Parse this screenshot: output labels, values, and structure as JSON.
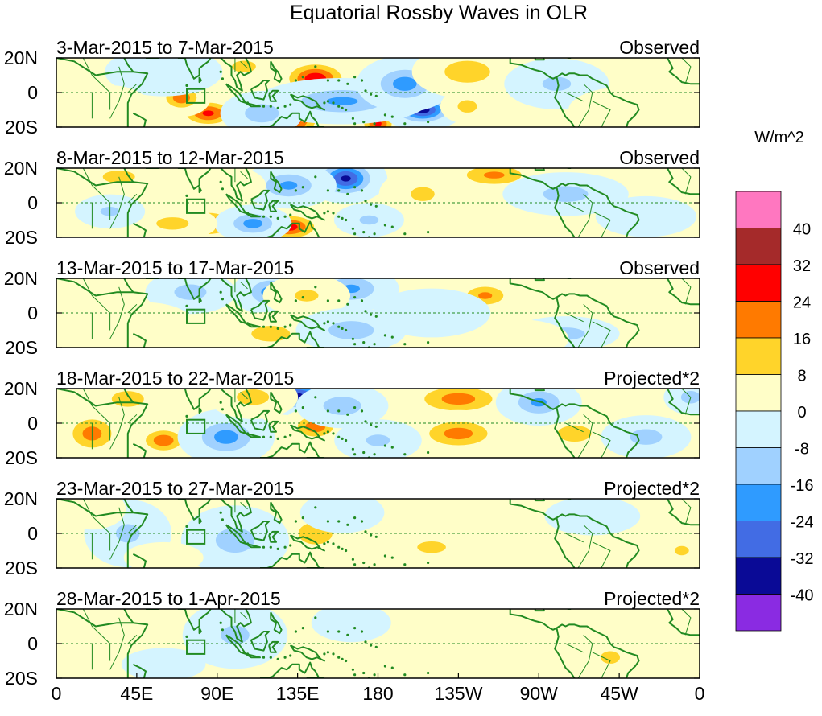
{
  "chart_data": {
    "type": "heatmap",
    "title": "Equatorial Rossby Waves in OLR",
    "units": "W/m^2",
    "x_ticks": [
      "0",
      "45E",
      "90E",
      "135E",
      "180",
      "135W",
      "90W",
      "45W",
      "0"
    ],
    "x_tick_lons": [
      0,
      45,
      90,
      135,
      180,
      225,
      270,
      315,
      360
    ],
    "y_ticks": [
      "20N",
      "0",
      "20S"
    ],
    "y_tick_lats": [
      20,
      0,
      -20
    ],
    "xlim": [
      0,
      360
    ],
    "ylim": [
      -20,
      20
    ],
    "reference_lines": {
      "equator_lat": 0,
      "dateline_lon": 180
    },
    "box_region": {
      "lon": [
        73,
        83
      ],
      "lat": [
        -6,
        2
      ]
    },
    "colorbar": {
      "levels": [
        "40",
        "32",
        "24",
        "16",
        "8",
        "0",
        "-8",
        "-16",
        "-24",
        "-32",
        "-40"
      ],
      "colors": [
        "#ff77c0",
        "#a52a2a",
        "#ff0000",
        "#ff7a00",
        "#ffd42a",
        "#fffec8",
        "#d4f4ff",
        "#a0d1ff",
        "#2f9bff",
        "#426ce4",
        "#0a0a96",
        "#8a2be2"
      ]
    },
    "panels": [
      {
        "period": "3-Mar-2015 to 7-Mar-2015",
        "label": "Observed",
        "blobs": [
          {
            "lon": 145,
            "lat": 8,
            "value": 30,
            "sx": 9,
            "sy": 5
          },
          {
            "lon": 85,
            "lat": -12,
            "value": 26,
            "sx": 8,
            "sy": 4
          },
          {
            "lon": 130,
            "lat": -16,
            "value": 32,
            "sx": 9,
            "sy": 5
          },
          {
            "lon": 70,
            "lat": -3,
            "value": 22,
            "sx": 6,
            "sy": 4
          },
          {
            "lon": 180,
            "lat": -18,
            "value": 26,
            "sx": 5,
            "sy": 4
          },
          {
            "lon": 205,
            "lat": -10,
            "value": -36,
            "sx": 8,
            "sy": 4
          },
          {
            "lon": 160,
            "lat": -5,
            "value": -18,
            "sx": 18,
            "sy": 5
          },
          {
            "lon": 195,
            "lat": 5,
            "value": -20,
            "sx": 10,
            "sy": 6
          },
          {
            "lon": 115,
            "lat": -12,
            "value": -14,
            "sx": 9,
            "sy": 5
          },
          {
            "lon": 230,
            "lat": 12,
            "value": 14,
            "sx": 12,
            "sy": 6
          },
          {
            "lon": 230,
            "lat": -8,
            "value": 12,
            "sx": 6,
            "sy": 4
          },
          {
            "lon": 105,
            "lat": 15,
            "value": 10,
            "sx": 10,
            "sy": 5
          },
          {
            "lon": 60,
            "lat": 12,
            "value": -8,
            "sx": 14,
            "sy": 6
          },
          {
            "lon": 280,
            "lat": 5,
            "value": -10,
            "sx": 12,
            "sy": 6
          },
          {
            "lon": 320,
            "lat": -10,
            "value": 6,
            "sx": 15,
            "sy": 6
          },
          {
            "lon": 30,
            "lat": -10,
            "value": 8,
            "sx": 10,
            "sy": 6
          }
        ]
      },
      {
        "period": "8-Mar-2015 to 12-Mar-2015",
        "label": "Observed",
        "blobs": [
          {
            "lon": 85,
            "lat": -12,
            "value": 26,
            "sx": 8,
            "sy": 4
          },
          {
            "lon": 130,
            "lat": -14,
            "value": 28,
            "sx": 9,
            "sy": 4
          },
          {
            "lon": 145,
            "lat": 10,
            "value": 18,
            "sx": 9,
            "sy": 5
          },
          {
            "lon": 162,
            "lat": 14,
            "value": -34,
            "sx": 8,
            "sy": 5
          },
          {
            "lon": 130,
            "lat": 10,
            "value": -18,
            "sx": 10,
            "sy": 5
          },
          {
            "lon": 110,
            "lat": -12,
            "value": -20,
            "sx": 8,
            "sy": 4
          },
          {
            "lon": 245,
            "lat": 16,
            "value": 18,
            "sx": 12,
            "sy": 4
          },
          {
            "lon": 205,
            "lat": 5,
            "value": 10,
            "sx": 10,
            "sy": 6
          },
          {
            "lon": 65,
            "lat": -12,
            "value": 12,
            "sx": 10,
            "sy": 4
          },
          {
            "lon": 35,
            "lat": 15,
            "value": 12,
            "sx": 10,
            "sy": 4
          },
          {
            "lon": 285,
            "lat": 5,
            "value": -12,
            "sx": 14,
            "sy": 5
          },
          {
            "lon": 30,
            "lat": -5,
            "value": -10,
            "sx": 8,
            "sy": 4
          },
          {
            "lon": 175,
            "lat": -10,
            "value": -10,
            "sx": 8,
            "sy": 4
          },
          {
            "lon": 330,
            "lat": -8,
            "value": -8,
            "sx": 12,
            "sy": 5
          },
          {
            "lon": 95,
            "lat": 10,
            "value": 6,
            "sx": 10,
            "sy": 5
          }
        ]
      },
      {
        "period": "13-Mar-2015 to 17-Mar-2015",
        "label": "Observed",
        "blobs": [
          {
            "lon": 120,
            "lat": 12,
            "value": -20,
            "sx": 8,
            "sy": 5
          },
          {
            "lon": 165,
            "lat": 14,
            "value": -18,
            "sx": 10,
            "sy": 5
          },
          {
            "lon": 140,
            "lat": 10,
            "value": 10,
            "sx": 10,
            "sy": 5
          },
          {
            "lon": 240,
            "lat": 10,
            "value": 18,
            "sx": 8,
            "sy": 4
          },
          {
            "lon": 120,
            "lat": -12,
            "value": 12,
            "sx": 12,
            "sy": 5
          },
          {
            "lon": 75,
            "lat": 12,
            "value": -12,
            "sx": 10,
            "sy": 5
          },
          {
            "lon": 165,
            "lat": -10,
            "value": -14,
            "sx": 12,
            "sy": 5
          },
          {
            "lon": 210,
            "lat": 0,
            "value": -8,
            "sx": 14,
            "sy": 6
          },
          {
            "lon": 285,
            "lat": -12,
            "value": -12,
            "sx": 12,
            "sy": 4
          },
          {
            "lon": 50,
            "lat": -8,
            "value": 8,
            "sx": 12,
            "sy": 6
          },
          {
            "lon": 315,
            "lat": 10,
            "value": 6,
            "sx": 12,
            "sy": 5
          },
          {
            "lon": 260,
            "lat": -15,
            "value": 6,
            "sx": 12,
            "sy": 5
          }
        ]
      },
      {
        "period": "18-Mar-2015 to 22-Mar-2015",
        "label": "Projected*2",
        "blobs": [
          {
            "lon": 135,
            "lat": 16,
            "value": -34,
            "sx": 9,
            "sy": 4
          },
          {
            "lon": 225,
            "lat": 14,
            "value": 20,
            "sx": 14,
            "sy": 5
          },
          {
            "lon": 145,
            "lat": -2,
            "value": 22,
            "sx": 7,
            "sy": 4
          },
          {
            "lon": 60,
            "lat": -10,
            "value": 22,
            "sx": 7,
            "sy": 4
          },
          {
            "lon": 20,
            "lat": -6,
            "value": 20,
            "sx": 8,
            "sy": 6
          },
          {
            "lon": 225,
            "lat": -6,
            "value": 20,
            "sx": 12,
            "sy": 5
          },
          {
            "lon": 290,
            "lat": -6,
            "value": 16,
            "sx": 8,
            "sy": 4
          },
          {
            "lon": 95,
            "lat": -8,
            "value": -20,
            "sx": 10,
            "sy": 6
          },
          {
            "lon": 270,
            "lat": 12,
            "value": -18,
            "sx": 9,
            "sy": 5
          },
          {
            "lon": 160,
            "lat": 10,
            "value": -14,
            "sx": 10,
            "sy": 5
          },
          {
            "lon": 330,
            "lat": -8,
            "value": -12,
            "sx": 10,
            "sy": 5
          },
          {
            "lon": 110,
            "lat": 15,
            "value": 12,
            "sx": 10,
            "sy": 5
          },
          {
            "lon": 180,
            "lat": -10,
            "value": -10,
            "sx": 10,
            "sy": 5
          },
          {
            "lon": 40,
            "lat": 14,
            "value": 12,
            "sx": 10,
            "sy": 5
          },
          {
            "lon": 355,
            "lat": 15,
            "value": -12,
            "sx": 6,
            "sy": 4
          }
        ]
      },
      {
        "period": "23-Mar-2015 to 27-Mar-2015",
        "label": "Projected*2",
        "blobs": [
          {
            "lon": 145,
            "lat": 0,
            "value": 14,
            "sx": 9,
            "sy": 6
          },
          {
            "lon": 100,
            "lat": -4,
            "value": -12,
            "sx": 12,
            "sy": 8
          },
          {
            "lon": 210,
            "lat": -8,
            "value": 10,
            "sx": 12,
            "sy": 5
          },
          {
            "lon": 250,
            "lat": 5,
            "value": 6,
            "sx": 14,
            "sy": 6
          },
          {
            "lon": 40,
            "lat": 0,
            "value": -10,
            "sx": 10,
            "sy": 8
          },
          {
            "lon": 160,
            "lat": 12,
            "value": -8,
            "sx": 10,
            "sy": 5
          },
          {
            "lon": 20,
            "lat": 14,
            "value": 8,
            "sx": 8,
            "sy": 5
          },
          {
            "lon": 350,
            "lat": -10,
            "value": 10,
            "sx": 6,
            "sy": 4
          },
          {
            "lon": 300,
            "lat": 10,
            "value": -6,
            "sx": 12,
            "sy": 5
          },
          {
            "lon": 60,
            "lat": -14,
            "value": 6,
            "sx": 10,
            "sy": 4
          }
        ]
      },
      {
        "period": "28-Mar-2015 to 1-Apr-2015",
        "label": "Projected*2",
        "blobs": [
          {
            "lon": 130,
            "lat": 2,
            "value": 8,
            "sx": 10,
            "sy": 6
          },
          {
            "lon": 100,
            "lat": 5,
            "value": -10,
            "sx": 12,
            "sy": 8
          },
          {
            "lon": 310,
            "lat": -8,
            "value": 12,
            "sx": 6,
            "sy": 4
          },
          {
            "lon": 210,
            "lat": 5,
            "value": 6,
            "sx": 14,
            "sy": 6
          },
          {
            "lon": 250,
            "lat": -10,
            "value": 6,
            "sx": 14,
            "sy": 5
          },
          {
            "lon": 60,
            "lat": -12,
            "value": -8,
            "sx": 10,
            "sy": 4
          },
          {
            "lon": 30,
            "lat": 10,
            "value": 6,
            "sx": 10,
            "sy": 5
          },
          {
            "lon": 165,
            "lat": 12,
            "value": -6,
            "sx": 10,
            "sy": 5
          }
        ]
      }
    ]
  }
}
